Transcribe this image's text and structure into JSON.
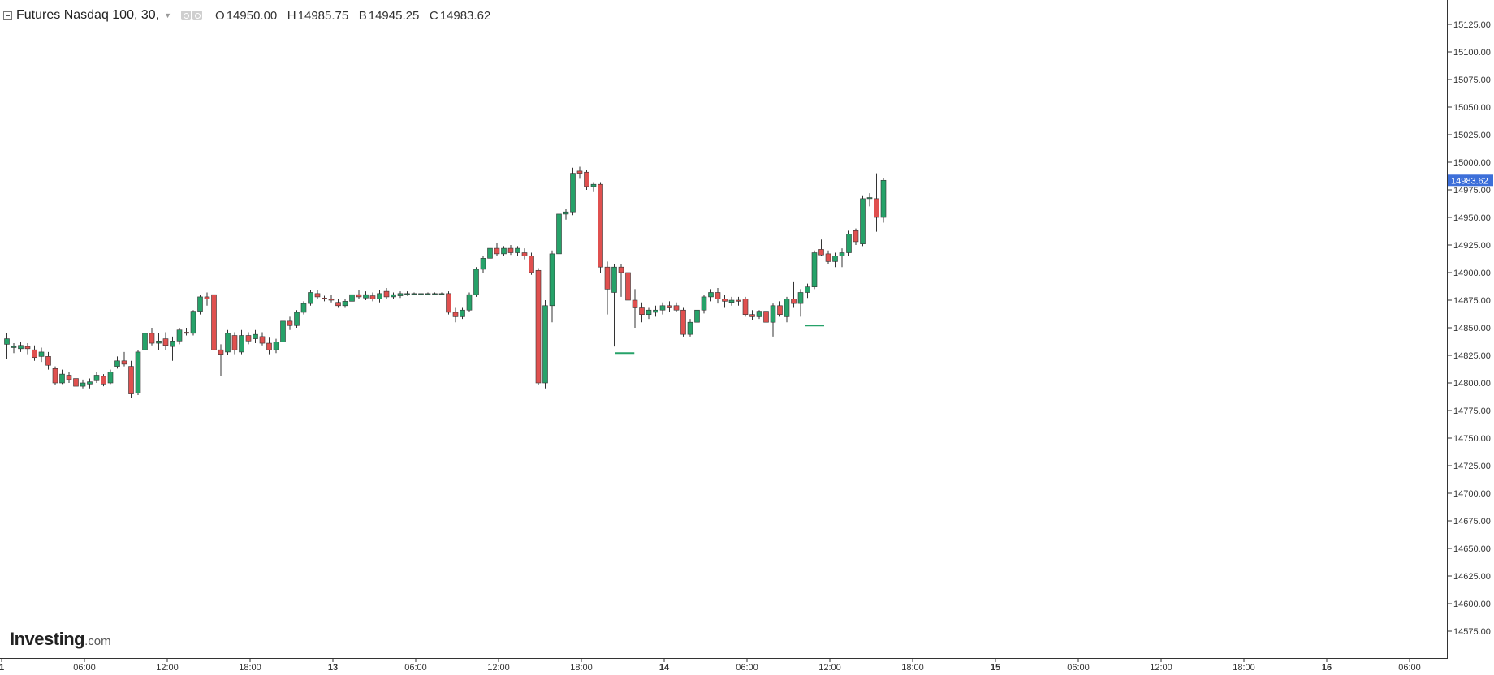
{
  "legend": {
    "symbol": "Futures Nasdaq 100, 30,",
    "open_label": "O",
    "open": "14950.00",
    "high_label": "H",
    "high": "14985.75",
    "low_label": "B",
    "low": "14945.25",
    "close_label": "C",
    "close": "14983.62"
  },
  "watermark": {
    "main": "Investing",
    "sub": ".com"
  },
  "chart_data": {
    "type": "candlestick",
    "interval": "30",
    "ylim": [
      14550,
      15150
    ],
    "y_ticks": [
      "15125.00",
      "15100.00",
      "15075.00",
      "15050.00",
      "15025.00",
      "15000.00",
      "14975.00",
      "14950.00",
      "14925.00",
      "14900.00",
      "14875.00",
      "14850.00",
      "14825.00",
      "14800.00",
      "14775.00",
      "14750.00",
      "14725.00",
      "14700.00",
      "14675.00",
      "14650.00",
      "14625.00",
      "14600.00",
      "14575.00"
    ],
    "x_ticks": [
      "1",
      "06:00",
      "12:00",
      "18:00",
      "13",
      "06:00",
      "12:00",
      "18:00",
      "14",
      "06:00",
      "12:00",
      "18:00",
      "15",
      "06:00",
      "12:00",
      "18:00",
      "16",
      "06:00"
    ],
    "x_tick_slots": [
      0,
      12,
      24,
      36,
      48,
      60,
      72,
      84,
      96,
      108,
      120,
      132,
      144,
      156,
      168,
      180,
      192,
      204
    ],
    "last_price": "14983.62",
    "colors": {
      "up": "#26a269",
      "down": "#e0504f",
      "price_tag": "#3d6fd9",
      "marker": "#26a269"
    },
    "markers": [
      {
        "slot": 89.5,
        "value": 14827
      },
      {
        "slot": 117,
        "value": 14852
      }
    ],
    "candles": [
      {
        "t": 0,
        "o": 14835,
        "h": 14845,
        "l": 14822,
        "c": 14840
      },
      {
        "t": 1,
        "o": 14832,
        "h": 14836,
        "l": 14827,
        "c": 14833
      },
      {
        "t": 2,
        "o": 14831,
        "h": 14837,
        "l": 14828,
        "c": 14834
      },
      {
        "t": 3,
        "o": 14833,
        "h": 14836,
        "l": 14826,
        "c": 14831
      },
      {
        "t": 4,
        "o": 14830,
        "h": 14834,
        "l": 14820,
        "c": 14823
      },
      {
        "t": 5,
        "o": 14824,
        "h": 14832,
        "l": 14819,
        "c": 14828
      },
      {
        "t": 6,
        "o": 14824,
        "h": 14828,
        "l": 14812,
        "c": 14816
      },
      {
        "t": 7,
        "o": 14813,
        "h": 14815,
        "l": 14798,
        "c": 14800
      },
      {
        "t": 8,
        "o": 14800,
        "h": 14812,
        "l": 14799,
        "c": 14808
      },
      {
        "t": 9,
        "o": 14807,
        "h": 14810,
        "l": 14800,
        "c": 14803
      },
      {
        "t": 10,
        "o": 14804,
        "h": 14806,
        "l": 14794,
        "c": 14797
      },
      {
        "t": 11,
        "o": 14797,
        "h": 14803,
        "l": 14795,
        "c": 14800
      },
      {
        "t": 12,
        "o": 14799,
        "h": 14804,
        "l": 14795,
        "c": 14801
      },
      {
        "t": 13,
        "o": 14802,
        "h": 14810,
        "l": 14800,
        "c": 14807
      },
      {
        "t": 14,
        "o": 14806,
        "h": 14808,
        "l": 14797,
        "c": 14799
      },
      {
        "t": 15,
        "o": 14800,
        "h": 14812,
        "l": 14799,
        "c": 14810
      },
      {
        "t": 16,
        "o": 14815,
        "h": 14824,
        "l": 14813,
        "c": 14820
      },
      {
        "t": 17,
        "o": 14820,
        "h": 14828,
        "l": 14815,
        "c": 14817
      },
      {
        "t": 18,
        "o": 14815,
        "h": 14820,
        "l": 14786,
        "c": 14790
      },
      {
        "t": 19,
        "o": 14791,
        "h": 14830,
        "l": 14789,
        "c": 14828
      },
      {
        "t": 20,
        "o": 14830,
        "h": 14852,
        "l": 14822,
        "c": 14845
      },
      {
        "t": 21,
        "o": 14845,
        "h": 14850,
        "l": 14834,
        "c": 14836
      },
      {
        "t": 22,
        "o": 14836,
        "h": 14845,
        "l": 14830,
        "c": 14838
      },
      {
        "t": 23,
        "o": 14840,
        "h": 14846,
        "l": 14830,
        "c": 14834
      },
      {
        "t": 24,
        "o": 14833,
        "h": 14842,
        "l": 14820,
        "c": 14838
      },
      {
        "t": 25,
        "o": 14838,
        "h": 14850,
        "l": 14835,
        "c": 14848
      },
      {
        "t": 26,
        "o": 14846,
        "h": 14850,
        "l": 14843,
        "c": 14845
      },
      {
        "t": 27,
        "o": 14845,
        "h": 14866,
        "l": 14843,
        "c": 14865
      },
      {
        "t": 28,
        "o": 14865,
        "h": 14880,
        "l": 14862,
        "c": 14878
      },
      {
        "t": 29,
        "o": 14878,
        "h": 14882,
        "l": 14870,
        "c": 14876
      },
      {
        "t": 30,
        "o": 14880,
        "h": 14888,
        "l": 14820,
        "c": 14830
      },
      {
        "t": 31,
        "o": 14830,
        "h": 14835,
        "l": 14806,
        "c": 14826
      },
      {
        "t": 32,
        "o": 14828,
        "h": 14848,
        "l": 14825,
        "c": 14845
      },
      {
        "t": 33,
        "o": 14843,
        "h": 14846,
        "l": 14826,
        "c": 14830
      },
      {
        "t": 34,
        "o": 14828,
        "h": 14848,
        "l": 14826,
        "c": 14843
      },
      {
        "t": 35,
        "o": 14843,
        "h": 14846,
        "l": 14835,
        "c": 14838
      },
      {
        "t": 36,
        "o": 14840,
        "h": 14848,
        "l": 14836,
        "c": 14844
      },
      {
        "t": 37,
        "o": 14842,
        "h": 14846,
        "l": 14834,
        "c": 14836
      },
      {
        "t": 38,
        "o": 14836,
        "h": 14841,
        "l": 14826,
        "c": 14830
      },
      {
        "t": 39,
        "o": 14830,
        "h": 14840,
        "l": 14827,
        "c": 14837
      },
      {
        "t": 40,
        "o": 14837,
        "h": 14858,
        "l": 14835,
        "c": 14856
      },
      {
        "t": 41,
        "o": 14856,
        "h": 14860,
        "l": 14848,
        "c": 14852
      },
      {
        "t": 42,
        "o": 14852,
        "h": 14866,
        "l": 14850,
        "c": 14864
      },
      {
        "t": 43,
        "o": 14864,
        "h": 14874,
        "l": 14862,
        "c": 14872
      },
      {
        "t": 44,
        "o": 14872,
        "h": 14884,
        "l": 14870,
        "c": 14882
      },
      {
        "t": 45,
        "o": 14881,
        "h": 14884,
        "l": 14876,
        "c": 14878
      },
      {
        "t": 46,
        "o": 14877,
        "h": 14879,
        "l": 14874,
        "c": 14876
      },
      {
        "t": 47,
        "o": 14876,
        "h": 14880,
        "l": 14873,
        "c": 14875
      },
      {
        "t": 48,
        "o": 14873,
        "h": 14876,
        "l": 14868,
        "c": 14870
      },
      {
        "t": 49,
        "o": 14870,
        "h": 14876,
        "l": 14868,
        "c": 14874
      },
      {
        "t": 50,
        "o": 14874,
        "h": 14882,
        "l": 14872,
        "c": 14880
      },
      {
        "t": 51,
        "o": 14880,
        "h": 14884,
        "l": 14876,
        "c": 14878
      },
      {
        "t": 52,
        "o": 14877,
        "h": 14883,
        "l": 14875,
        "c": 14880
      },
      {
        "t": 53,
        "o": 14879,
        "h": 14882,
        "l": 14874,
        "c": 14876
      },
      {
        "t": 54,
        "o": 14876,
        "h": 14884,
        "l": 14873,
        "c": 14881
      },
      {
        "t": 55,
        "o": 14883,
        "h": 14886,
        "l": 14876,
        "c": 14878
      },
      {
        "t": 56,
        "o": 14878,
        "h": 14882,
        "l": 14876,
        "c": 14880
      },
      {
        "t": 57,
        "o": 14879,
        "h": 14883,
        "l": 14877,
        "c": 14881
      },
      {
        "t": 58,
        "o": 14881,
        "h": 14883,
        "l": 14879,
        "c": 14881
      },
      {
        "t": 59,
        "o": 14881,
        "h": 14882,
        "l": 14880,
        "c": 14881
      },
      {
        "t": 60,
        "o": 14881,
        "h": 14882,
        "l": 14880,
        "c": 14881
      },
      {
        "t": 61,
        "o": 14881,
        "h": 14882,
        "l": 14880,
        "c": 14881
      },
      {
        "t": 62,
        "o": 14881,
        "h": 14882,
        "l": 14880,
        "c": 14881
      },
      {
        "t": 63,
        "o": 14881,
        "h": 14882,
        "l": 14880,
        "c": 14881
      },
      {
        "t": 64,
        "o": 14881,
        "h": 14883,
        "l": 14862,
        "c": 14864
      },
      {
        "t": 65,
        "o": 14864,
        "h": 14868,
        "l": 14855,
        "c": 14860
      },
      {
        "t": 66,
        "o": 14860,
        "h": 14868,
        "l": 14858,
        "c": 14866
      },
      {
        "t": 67,
        "o": 14866,
        "h": 14882,
        "l": 14864,
        "c": 14880
      },
      {
        "t": 68,
        "o": 14880,
        "h": 14905,
        "l": 14878,
        "c": 14903
      },
      {
        "t": 69,
        "o": 14903,
        "h": 14915,
        "l": 14900,
        "c": 14913
      },
      {
        "t": 70,
        "o": 14913,
        "h": 14925,
        "l": 14910,
        "c": 14922
      },
      {
        "t": 71,
        "o": 14922,
        "h": 14927,
        "l": 14915,
        "c": 14917
      },
      {
        "t": 72,
        "o": 14917,
        "h": 14924,
        "l": 14915,
        "c": 14922
      },
      {
        "t": 73,
        "o": 14922,
        "h": 14925,
        "l": 14916,
        "c": 14918
      },
      {
        "t": 74,
        "o": 14918,
        "h": 14924,
        "l": 14915,
        "c": 14922
      },
      {
        "t": 75,
        "o": 14918,
        "h": 14922,
        "l": 14912,
        "c": 14915
      },
      {
        "t": 76,
        "o": 14915,
        "h": 14918,
        "l": 14898,
        "c": 14900
      },
      {
        "t": 77,
        "o": 14902,
        "h": 14904,
        "l": 14798,
        "c": 14800
      },
      {
        "t": 78,
        "o": 14800,
        "h": 14875,
        "l": 14795,
        "c": 14870
      },
      {
        "t": 79,
        "o": 14870,
        "h": 14920,
        "l": 14855,
        "c": 14917
      },
      {
        "t": 80,
        "o": 14917,
        "h": 14955,
        "l": 14915,
        "c": 14953
      },
      {
        "t": 81,
        "o": 14953,
        "h": 14958,
        "l": 14948,
        "c": 14955
      },
      {
        "t": 82,
        "o": 14955,
        "h": 14995,
        "l": 14952,
        "c": 14990
      },
      {
        "t": 83,
        "o": 14992,
        "h": 14996,
        "l": 14985,
        "c": 14990
      },
      {
        "t": 84,
        "o": 14991,
        "h": 14993,
        "l": 14975,
        "c": 14978
      },
      {
        "t": 85,
        "o": 14978,
        "h": 14982,
        "l": 14973,
        "c": 14980
      },
      {
        "t": 86,
        "o": 14980,
        "h": 14982,
        "l": 14900,
        "c": 14905
      },
      {
        "t": 87,
        "o": 14905,
        "h": 14910,
        "l": 14862,
        "c": 14885
      },
      {
        "t": 88,
        "o": 14882,
        "h": 14908,
        "l": 14833,
        "c": 14905
      },
      {
        "t": 89,
        "o": 14905,
        "h": 14908,
        "l": 14878,
        "c": 14900
      },
      {
        "t": 90,
        "o": 14900,
        "h": 14902,
        "l": 14872,
        "c": 14875
      },
      {
        "t": 91,
        "o": 14875,
        "h": 14885,
        "l": 14850,
        "c": 14868
      },
      {
        "t": 92,
        "o": 14868,
        "h": 14873,
        "l": 14855,
        "c": 14862
      },
      {
        "t": 93,
        "o": 14862,
        "h": 14868,
        "l": 14858,
        "c": 14866
      },
      {
        "t": 94,
        "o": 14864,
        "h": 14870,
        "l": 14860,
        "c": 14866
      },
      {
        "t": 95,
        "o": 14866,
        "h": 14873,
        "l": 14862,
        "c": 14870
      },
      {
        "t": 96,
        "o": 14870,
        "h": 14874,
        "l": 14864,
        "c": 14868
      },
      {
        "t": 97,
        "o": 14870,
        "h": 14873,
        "l": 14864,
        "c": 14866
      },
      {
        "t": 98,
        "o": 14866,
        "h": 14868,
        "l": 14842,
        "c": 14844
      },
      {
        "t": 99,
        "o": 14844,
        "h": 14858,
        "l": 14842,
        "c": 14855
      },
      {
        "t": 100,
        "o": 14855,
        "h": 14868,
        "l": 14852,
        "c": 14866
      },
      {
        "t": 101,
        "o": 14866,
        "h": 14880,
        "l": 14863,
        "c": 14878
      },
      {
        "t": 102,
        "o": 14878,
        "h": 14885,
        "l": 14874,
        "c": 14882
      },
      {
        "t": 103,
        "o": 14882,
        "h": 14886,
        "l": 14872,
        "c": 14876
      },
      {
        "t": 104,
        "o": 14876,
        "h": 14880,
        "l": 14868,
        "c": 14874
      },
      {
        "t": 105,
        "o": 14873,
        "h": 14878,
        "l": 14870,
        "c": 14875
      },
      {
        "t": 106,
        "o": 14875,
        "h": 14878,
        "l": 14870,
        "c": 14874
      },
      {
        "t": 107,
        "o": 14876,
        "h": 14878,
        "l": 14860,
        "c": 14862
      },
      {
        "t": 108,
        "o": 14862,
        "h": 14866,
        "l": 14857,
        "c": 14860
      },
      {
        "t": 109,
        "o": 14860,
        "h": 14866,
        "l": 14858,
        "c": 14865
      },
      {
        "t": 110,
        "o": 14865,
        "h": 14868,
        "l": 14852,
        "c": 14855
      },
      {
        "t": 111,
        "o": 14855,
        "h": 14872,
        "l": 14842,
        "c": 14870
      },
      {
        "t": 112,
        "o": 14870,
        "h": 14874,
        "l": 14860,
        "c": 14862
      },
      {
        "t": 113,
        "o": 14860,
        "h": 14878,
        "l": 14855,
        "c": 14876
      },
      {
        "t": 114,
        "o": 14876,
        "h": 14892,
        "l": 14868,
        "c": 14872
      },
      {
        "t": 115,
        "o": 14872,
        "h": 14885,
        "l": 14860,
        "c": 14882
      },
      {
        "t": 116,
        "o": 14882,
        "h": 14890,
        "l": 14877,
        "c": 14887
      },
      {
        "t": 117,
        "o": 14887,
        "h": 14920,
        "l": 14885,
        "c": 14918
      },
      {
        "t": 118,
        "o": 14921,
        "h": 14930,
        "l": 14915,
        "c": 14916
      },
      {
        "t": 119,
        "o": 14917,
        "h": 14920,
        "l": 14908,
        "c": 14910
      },
      {
        "t": 120,
        "o": 14910,
        "h": 14918,
        "l": 14905,
        "c": 14915
      },
      {
        "t": 121,
        "o": 14915,
        "h": 14922,
        "l": 14905,
        "c": 14918
      },
      {
        "t": 122,
        "o": 14918,
        "h": 14938,
        "l": 14915,
        "c": 14935
      },
      {
        "t": 123,
        "o": 14938,
        "h": 14940,
        "l": 14925,
        "c": 14928
      },
      {
        "t": 124,
        "o": 14926,
        "h": 14970,
        "l": 14924,
        "c": 14967
      },
      {
        "t": 125,
        "o": 14967,
        "h": 14972,
        "l": 14960,
        "c": 14968
      },
      {
        "t": 126,
        "o": 14967,
        "h": 14990,
        "l": 14937,
        "c": 14950
      },
      {
        "t": 127,
        "o": 14950,
        "h": 14985.75,
        "l": 14945.25,
        "c": 14983.62
      }
    ]
  }
}
